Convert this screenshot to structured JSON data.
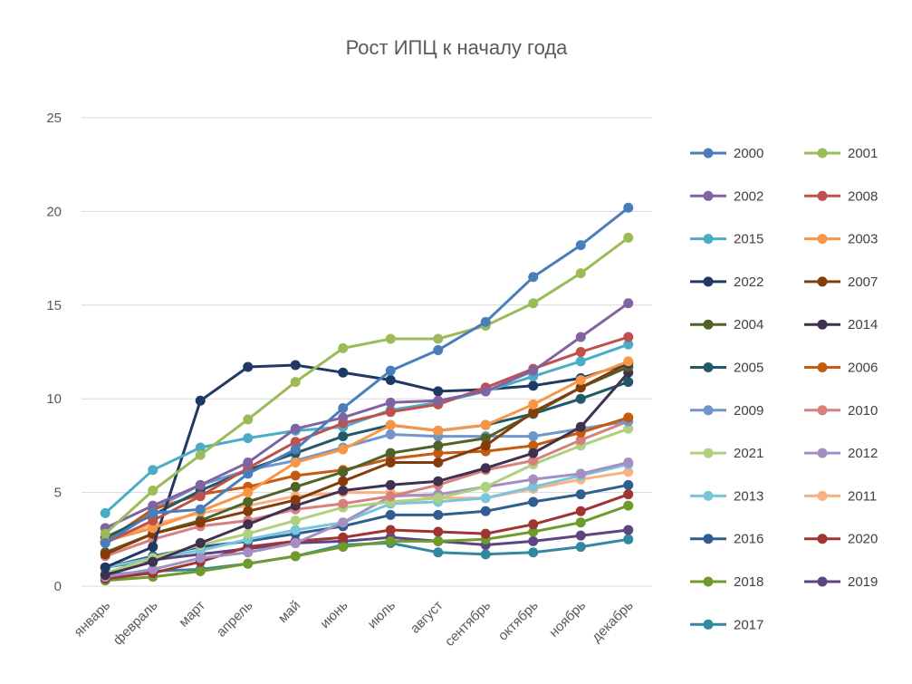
{
  "chart_data": {
    "type": "line",
    "title": "Рост ИПЦ к началу года",
    "xlabel": "",
    "ylabel": "",
    "ylim": [
      0,
      25
    ],
    "yticks": [
      0,
      5,
      10,
      15,
      20,
      25
    ],
    "grid": true,
    "legend": "right",
    "categories": [
      "январь",
      "февраль",
      "март",
      "апрель",
      "май",
      "июнь",
      "июль",
      "август",
      "сентябрь",
      "октябрь",
      "ноябрь",
      "декабрь"
    ],
    "series": [
      {
        "name": "2000",
        "color": "#4a7ebb",
        "values": [
          2.3,
          3.9,
          4.1,
          6.0,
          7.3,
          9.5,
          11.5,
          12.6,
          14.1,
          16.5,
          18.2,
          20.2
        ]
      },
      {
        "name": "2001",
        "color": "#9bbb59",
        "values": [
          2.8,
          5.1,
          7.0,
          8.9,
          10.9,
          12.7,
          13.2,
          13.2,
          13.9,
          15.1,
          16.7,
          18.6
        ]
      },
      {
        "name": "2002",
        "color": "#8064a2",
        "values": [
          3.1,
          4.3,
          5.4,
          6.6,
          8.4,
          9.0,
          9.8,
          9.9,
          10.4,
          11.5,
          13.3,
          15.1
        ]
      },
      {
        "name": "2008",
        "color": "#c0504d",
        "values": [
          2.3,
          3.5,
          4.8,
          6.3,
          7.7,
          8.7,
          9.3,
          9.7,
          10.6,
          11.6,
          12.5,
          13.3
        ]
      },
      {
        "name": "2015",
        "color": "#4bacc6",
        "values": [
          3.9,
          6.2,
          7.4,
          7.9,
          8.3,
          8.5,
          9.4,
          9.8,
          10.4,
          11.2,
          12.0,
          12.9
        ]
      },
      {
        "name": "2003",
        "color": "#f79646",
        "values": [
          2.4,
          3.1,
          4.0,
          5.0,
          6.6,
          7.3,
          8.6,
          8.3,
          8.6,
          9.7,
          11.0,
          12.0
        ]
      },
      {
        "name": "2022",
        "color": "#1f3864",
        "values": [
          1.0,
          2.1,
          9.9,
          11.7,
          11.8,
          11.4,
          11.0,
          10.4,
          10.5,
          10.7,
          11.1,
          11.9
        ]
      },
      {
        "name": "2007",
        "color": "#843c0c",
        "values": [
          1.7,
          2.8,
          3.4,
          4.0,
          4.6,
          5.6,
          6.6,
          6.6,
          7.5,
          9.3,
          10.6,
          11.9
        ]
      },
      {
        "name": "2004",
        "color": "#4f6228",
        "values": [
          1.8,
          2.8,
          3.5,
          4.5,
          5.3,
          6.1,
          7.1,
          7.5,
          7.9,
          9.2,
          10.6,
          11.7
        ]
      },
      {
        "name": "2014",
        "color": "#403151",
        "values": [
          0.6,
          1.3,
          2.3,
          3.3,
          4.3,
          5.1,
          5.4,
          5.6,
          6.3,
          7.1,
          8.5,
          11.4
        ]
      },
      {
        "name": "2005",
        "color": "#215968",
        "values": [
          2.6,
          3.8,
          5.1,
          6.2,
          7.1,
          8.0,
          8.6,
          8.3,
          8.6,
          9.2,
          10.0,
          10.9
        ]
      },
      {
        "name": "2006",
        "color": "#c55a11",
        "values": [
          2.4,
          4.1,
          4.9,
          5.3,
          5.9,
          6.2,
          6.8,
          7.1,
          7.2,
          7.5,
          8.2,
          9.0
        ]
      },
      {
        "name": "2009",
        "color": "#7196cc",
        "values": [
          2.4,
          4.1,
          5.4,
          6.2,
          6.7,
          7.4,
          8.1,
          8.0,
          8.0,
          8.0,
          8.4,
          8.8
        ]
      },
      {
        "name": "2010",
        "color": "#d7807e",
        "values": [
          1.6,
          2.5,
          3.2,
          3.5,
          4.1,
          4.4,
          4.8,
          5.4,
          6.2,
          6.7,
          7.8,
          8.8
        ]
      },
      {
        "name": "2021",
        "color": "#afd07f",
        "values": [
          0.7,
          1.5,
          2.2,
          2.8,
          3.5,
          4.2,
          4.5,
          4.7,
          5.3,
          6.5,
          7.5,
          8.4
        ]
      },
      {
        "name": "2012",
        "color": "#a48fc2",
        "values": [
          0.5,
          0.9,
          1.5,
          1.8,
          2.3,
          3.4,
          4.8,
          4.9,
          5.3,
          5.7,
          6.0,
          6.6
        ]
      },
      {
        "name": "2013",
        "color": "#79c6db",
        "values": [
          1.0,
          1.5,
          1.9,
          2.5,
          3.0,
          3.4,
          4.4,
          4.5,
          4.7,
          5.3,
          5.9,
          6.5
        ]
      },
      {
        "name": "2011",
        "color": "#f9b183",
        "values": [
          2.4,
          3.3,
          3.9,
          4.3,
          4.8,
          5.0,
          5.0,
          4.7,
          4.7,
          5.2,
          5.7,
          6.1
        ]
      },
      {
        "name": "2016",
        "color": "#305d92",
        "values": [
          1.0,
          1.6,
          2.1,
          2.4,
          2.8,
          3.2,
          3.8,
          3.8,
          4.0,
          4.5,
          4.9,
          5.4
        ]
      },
      {
        "name": "2020",
        "color": "#9e3533",
        "values": [
          0.4,
          0.7,
          1.3,
          2.1,
          2.4,
          2.6,
          3.0,
          2.9,
          2.8,
          3.3,
          4.0,
          4.9
        ]
      },
      {
        "name": "2018",
        "color": "#6f9a2e",
        "values": [
          0.3,
          0.5,
          0.8,
          1.2,
          1.6,
          2.1,
          2.4,
          2.4,
          2.5,
          2.9,
          3.4,
          4.3
        ]
      },
      {
        "name": "2019",
        "color": "#5d4580",
        "values": [
          1.0,
          1.4,
          1.7,
          2.0,
          2.3,
          2.4,
          2.6,
          2.4,
          2.2,
          2.4,
          2.7,
          3.0
        ]
      },
      {
        "name": "2017",
        "color": "#3288a0",
        "values": [
          0.6,
          0.8,
          0.9,
          1.2,
          1.6,
          2.2,
          2.3,
          1.8,
          1.7,
          1.8,
          2.1,
          2.5
        ]
      }
    ]
  }
}
